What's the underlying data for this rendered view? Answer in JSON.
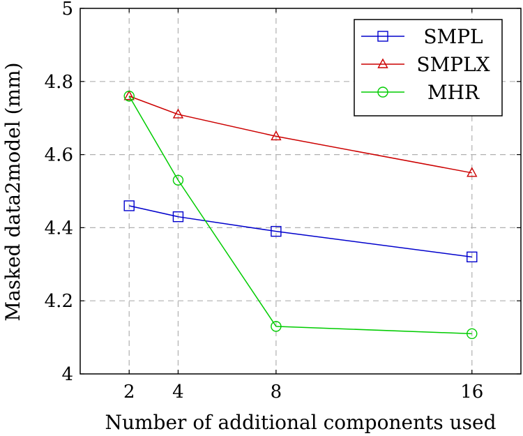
{
  "chart_data": {
    "type": "line",
    "title": "",
    "xlabel": "Number of additional components used",
    "ylabel": "Masked data2model (mm)",
    "x": [
      2,
      4,
      8,
      16
    ],
    "xlim": [
      0,
      18
    ],
    "ylim": [
      4.0,
      5.0
    ],
    "xticks": [
      "2",
      "4",
      "8",
      "16"
    ],
    "yticks": [
      "4",
      "4.2",
      "4.4",
      "4.6",
      "4.8",
      "5"
    ],
    "grid": true,
    "legend_position": "top-right",
    "series": [
      {
        "name": "SMPL",
        "color": "#0000cc",
        "marker": "square",
        "values": [
          4.46,
          4.43,
          4.39,
          4.32
        ]
      },
      {
        "name": "SMPLX",
        "color": "#cc0000",
        "marker": "triangle",
        "values": [
          4.76,
          4.71,
          4.65,
          4.55
        ]
      },
      {
        "name": "MHR",
        "color": "#00cc00",
        "marker": "circle",
        "values": [
          4.76,
          4.53,
          4.13,
          4.11
        ]
      }
    ]
  }
}
